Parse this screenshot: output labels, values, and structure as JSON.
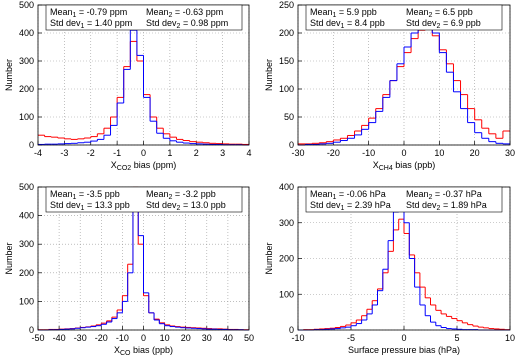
{
  "chart_data": [
    {
      "type": "histogram",
      "xlabel": {
        "main": "X",
        "sub": "CO2",
        "text": " bias (ppm)"
      },
      "ylabel": "Number",
      "stats": [
        {
          "label": "Mean",
          "sub": "1",
          "text": " = -0.79 ppm"
        },
        {
          "label": "Std dev",
          "sub": "1",
          "text": " = 1.40 ppm"
        },
        {
          "label": "Mean",
          "sub": "2",
          "text": " = -0.63 ppm"
        },
        {
          "label": "Std dev",
          "sub": "2",
          "text": " = 0.98 ppm"
        }
      ],
      "xlim": [
        -4,
        4
      ],
      "xticks": [
        -4,
        -3,
        -2,
        -1,
        0,
        1,
        2,
        3,
        4
      ],
      "ylim": [
        0,
        500
      ],
      "yticks": [
        0,
        100,
        200,
        300,
        400,
        500
      ],
      "grid": true,
      "bins": [
        -4,
        -3.75,
        -3.5,
        -3.25,
        -3,
        -2.75,
        -2.5,
        -2.25,
        -2,
        -1.75,
        -1.5,
        -1.25,
        -1,
        -0.75,
        -0.5,
        -0.25,
        0,
        0.25,
        0.5,
        0.75,
        1,
        1.25,
        1.5,
        1.75,
        2,
        2.25,
        2.5,
        2.75,
        3,
        3.25,
        3.5,
        3.75,
        4
      ],
      "series": [
        {
          "color": "#ff0000",
          "values": [
            35,
            30,
            28,
            25,
            22,
            20,
            22,
            25,
            30,
            40,
            60,
            100,
            170,
            280,
            370,
            300,
            180,
            100,
            60,
            40,
            28,
            20,
            16,
            12,
            10,
            8,
            6,
            5,
            4,
            3,
            3,
            2
          ]
        },
        {
          "color": "#0000ff",
          "values": [
            2,
            3,
            3,
            4,
            5,
            6,
            8,
            10,
            14,
            20,
            35,
            70,
            150,
            270,
            410,
            320,
            170,
            85,
            42,
            24,
            15,
            10,
            7,
            5,
            4,
            3,
            2,
            2,
            1,
            1,
            1,
            0
          ]
        }
      ]
    },
    {
      "type": "histogram",
      "xlabel": {
        "main": "X",
        "sub": "CH4",
        "text": " bias (ppb)"
      },
      "ylabel": "Number",
      "stats": [
        {
          "label": "Mean",
          "sub": "1",
          "text": " = 5.9 ppb"
        },
        {
          "label": "Std dev",
          "sub": "1",
          "text": " = 8.4 ppb"
        },
        {
          "label": "Mean",
          "sub": "2",
          "text": " = 6.5 ppb"
        },
        {
          "label": "Std dev",
          "sub": "2",
          "text": " = 6.9 ppb"
        }
      ],
      "xlim": [
        -30,
        30
      ],
      "xticks": [
        -30,
        -20,
        -10,
        0,
        10,
        20,
        30
      ],
      "ylim": [
        0,
        250
      ],
      "yticks": [
        0,
        50,
        100,
        150,
        200,
        250
      ],
      "grid": true,
      "bins": [
        -30,
        -28,
        -26,
        -24,
        -22,
        -20,
        -18,
        -16,
        -14,
        -12,
        -10,
        -8,
        -6,
        -4,
        -2,
        0,
        2,
        4,
        6,
        8,
        10,
        12,
        14,
        16,
        18,
        20,
        22,
        24,
        26,
        28,
        30
      ],
      "series": [
        {
          "color": "#ff0000",
          "values": [
            2,
            2,
            3,
            4,
            6,
            9,
            12,
            17,
            25,
            35,
            48,
            65,
            90,
            115,
            140,
            165,
            190,
            205,
            210,
            195,
            170,
            145,
            115,
            90,
            65,
            45,
            30,
            20,
            12,
            25
          ]
        },
        {
          "color": "#0000ff",
          "values": [
            0,
            1,
            1,
            2,
            3,
            5,
            8,
            12,
            18,
            28,
            40,
            60,
            85,
            115,
            145,
            175,
            200,
            215,
            230,
            200,
            165,
            130,
            95,
            65,
            40,
            22,
            12,
            6,
            3,
            2
          ]
        }
      ]
    },
    {
      "type": "histogram",
      "xlabel": {
        "main": "X",
        "sub": "CO",
        "text": " bias (ppb)"
      },
      "ylabel": "Number",
      "stats": [
        {
          "label": "Mean",
          "sub": "1",
          "text": " = -3.5 ppb"
        },
        {
          "label": "Std dev",
          "sub": "1",
          "text": " = 13.3 ppb"
        },
        {
          "label": "Mean",
          "sub": "2",
          "text": " = -3.2 ppb"
        },
        {
          "label": "Std dev",
          "sub": "2",
          "text": " = 13.0 ppb"
        }
      ],
      "xlim": [
        -50,
        50
      ],
      "xticks": [
        -50,
        -40,
        -30,
        -20,
        -10,
        0,
        10,
        20,
        30,
        40,
        50
      ],
      "ylim": [
        0,
        500
      ],
      "yticks": [
        0,
        100,
        200,
        300,
        400,
        500
      ],
      "grid": true,
      "bins": [
        -50,
        -47.5,
        -45,
        -42.5,
        -40,
        -37.5,
        -35,
        -32.5,
        -30,
        -27.5,
        -25,
        -22.5,
        -20,
        -17.5,
        -15,
        -12.5,
        -10,
        -7.5,
        -5,
        -2.5,
        0,
        2.5,
        5,
        7.5,
        10,
        12.5,
        15,
        17.5,
        20,
        22.5,
        25,
        27.5,
        30,
        32.5,
        35,
        37.5,
        40,
        42.5,
        45,
        47.5,
        50
      ],
      "series": [
        {
          "color": "#ff0000",
          "values": [
            1,
            1,
            2,
            2,
            3,
            4,
            5,
            7,
            9,
            11,
            14,
            18,
            24,
            32,
            45,
            70,
            120,
            230,
            500,
            300,
            120,
            60,
            38,
            25,
            18,
            14,
            12,
            10,
            9,
            8,
            7,
            6,
            5,
            4,
            4,
            3,
            2,
            2,
            1,
            1
          ]
        },
        {
          "color": "#0000ff",
          "values": [
            0,
            0,
            1,
            1,
            2,
            3,
            4,
            6,
            8,
            10,
            12,
            15,
            20,
            28,
            40,
            60,
            100,
            200,
            490,
            330,
            130,
            60,
            35,
            22,
            15,
            12,
            10,
            8,
            7,
            6,
            5,
            4,
            3,
            3,
            2,
            2,
            1,
            1,
            1,
            0
          ]
        }
      ]
    },
    {
      "type": "histogram",
      "xlabel": {
        "main": "Surface pressure bias (hPa)"
      },
      "ylabel": "Number",
      "stats": [
        {
          "label": "Mean",
          "sub": "1",
          "text": " = -0.06 hPa"
        },
        {
          "label": "Std dev",
          "sub": "1",
          "text": " = 2.39 hPa"
        },
        {
          "label": "Mean",
          "sub": "2",
          "text": " = -0.37 hPa"
        },
        {
          "label": "Std dev",
          "sub": "2",
          "text": " = 1.89 hPa"
        }
      ],
      "xlim": [
        -10,
        10
      ],
      "xticks": [
        -10,
        -5,
        0,
        5,
        10
      ],
      "ylim": [
        0,
        400
      ],
      "yticks": [
        0,
        100,
        200,
        300,
        400
      ],
      "grid": true,
      "bins": [
        -10,
        -9.5,
        -9,
        -8.5,
        -8,
        -7.5,
        -7,
        -6.5,
        -6,
        -5.5,
        -5,
        -4.5,
        -4,
        -3.5,
        -3,
        -2.5,
        -2,
        -1.5,
        -1,
        -0.5,
        0,
        0.5,
        1,
        1.5,
        2,
        2.5,
        3,
        3.5,
        4,
        4.5,
        5,
        5.5,
        6,
        6.5,
        7,
        7.5,
        8,
        8.5,
        9,
        9.5,
        10
      ],
      "series": [
        {
          "color": "#ff0000",
          "values": [
            0,
            1,
            1,
            2,
            3,
            4,
            5,
            7,
            10,
            14,
            20,
            28,
            40,
            58,
            82,
            115,
            160,
            220,
            280,
            310,
            270,
            210,
            160,
            120,
            90,
            70,
            55,
            45,
            38,
            32,
            26,
            20,
            15,
            11,
            8,
            6,
            4,
            3,
            2,
            1
          ]
        },
        {
          "color": "#0000ff",
          "values": [
            0,
            0,
            0,
            1,
            1,
            2,
            3,
            4,
            6,
            8,
            12,
            18,
            28,
            45,
            70,
            110,
            170,
            250,
            330,
            375,
            300,
            200,
            120,
            70,
            40,
            22,
            12,
            7,
            4,
            3,
            2,
            1,
            1,
            1,
            0,
            0,
            0,
            0,
            0,
            0
          ]
        }
      ]
    }
  ]
}
